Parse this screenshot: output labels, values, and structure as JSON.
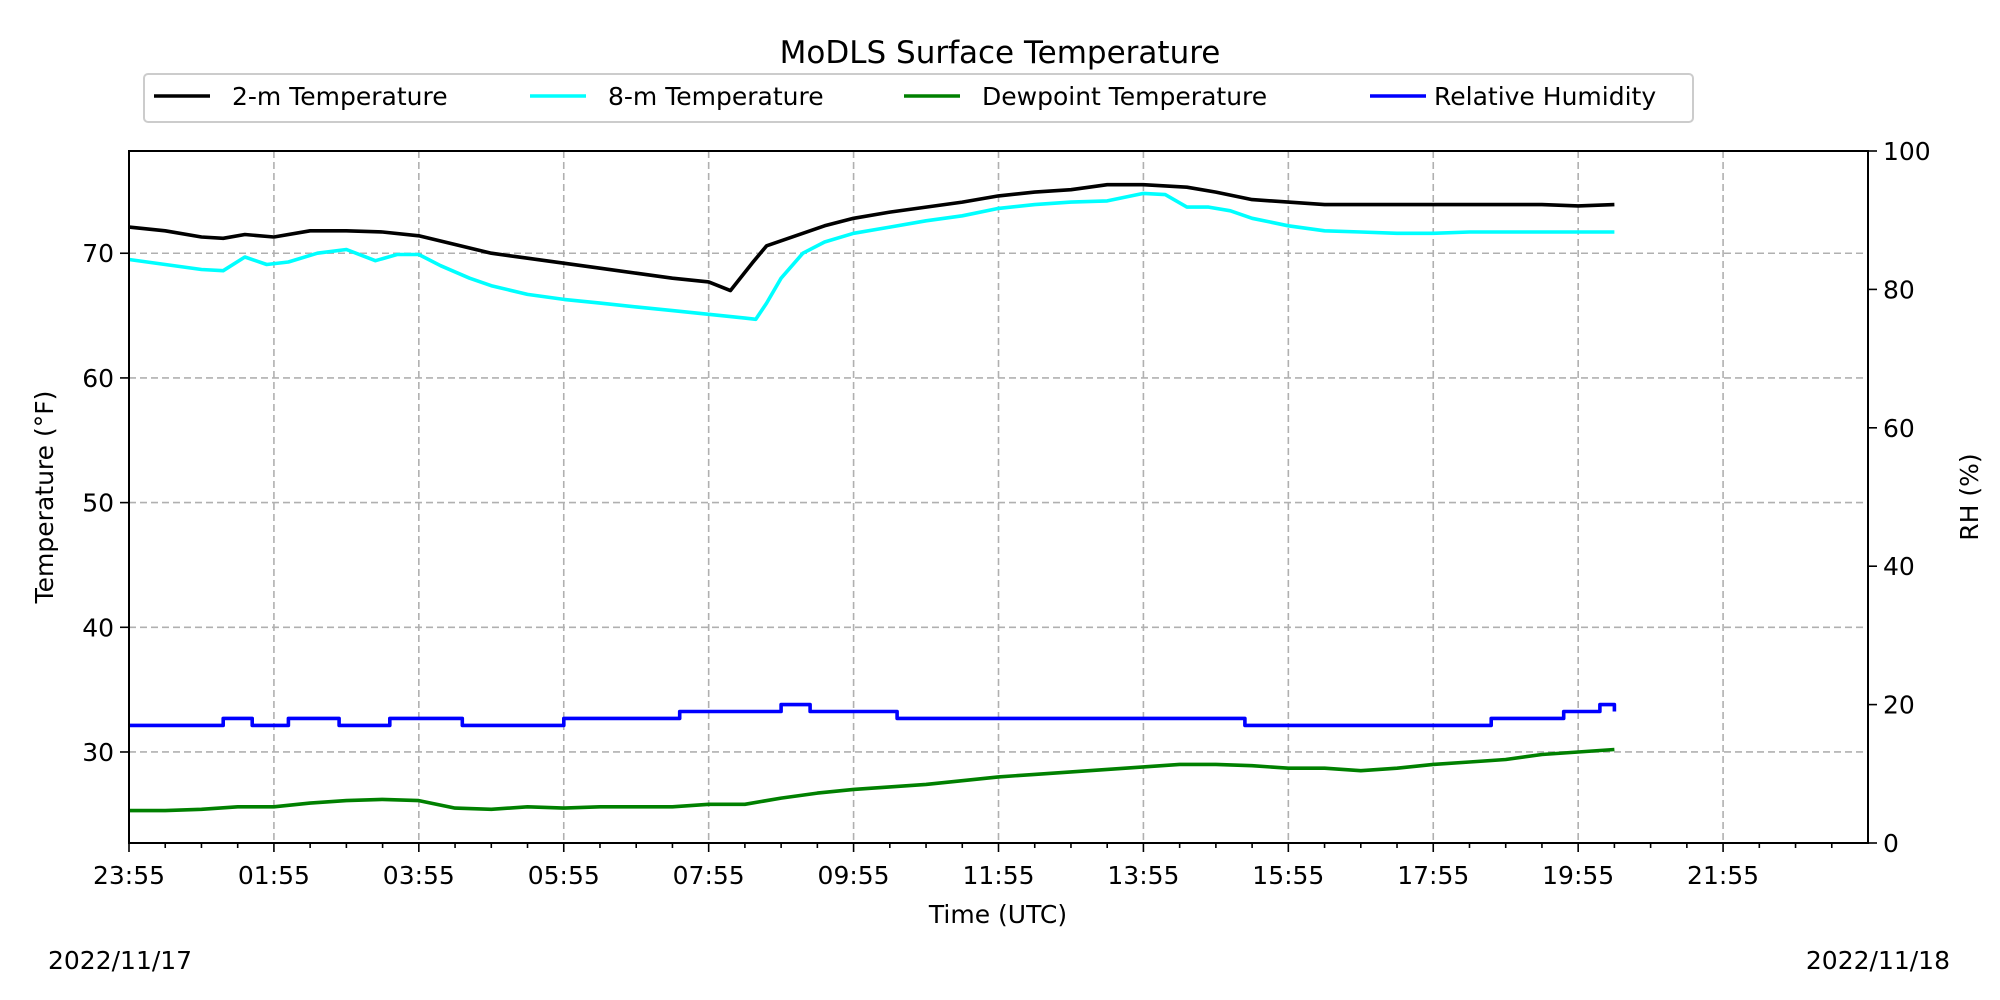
{
  "chart_data": {
    "type": "line",
    "title": "MoDLS Surface Temperature",
    "xlabel": "Time (UTC)",
    "ylabel": "Temperature ($^\\circ$F)",
    "ylabel_display": "Temperature (°F)",
    "y2label": "RH (%)",
    "ylim": [
      22.7,
      78.2
    ],
    "y2lim": [
      0,
      100
    ],
    "x_unit": "hours since 23:55 UTC 2022/11/17",
    "xlim": [
      0,
      24
    ],
    "x_ticks": [
      0,
      2,
      4,
      6,
      8,
      10,
      12,
      14,
      16,
      18,
      20,
      22
    ],
    "x_tick_labels": [
      "23:55",
      "01:55",
      "03:55",
      "05:55",
      "07:55",
      "09:55",
      "11:55",
      "13:55",
      "15:55",
      "17:55",
      "19:55",
      "21:55"
    ],
    "y_ticks": [
      30,
      40,
      50,
      60,
      70
    ],
    "y_tick_labels": [
      "30",
      "40",
      "50",
      "60",
      "70"
    ],
    "y2_ticks": [
      0,
      20,
      40,
      60,
      80,
      100
    ],
    "y2_tick_labels": [
      "0",
      "20",
      "40",
      "60",
      "80",
      "100"
    ],
    "grid": true,
    "legend_position": "top-center",
    "dates": {
      "start": "2022/11/17",
      "end": "2022/11/18"
    },
    "series": [
      {
        "name": "2-m Temperature",
        "axis": "left",
        "color": "#000000",
        "x": [
          0,
          0.5,
          1.0,
          1.3,
          1.6,
          2.0,
          2.5,
          3.0,
          3.5,
          4.0,
          4.5,
          5.0,
          5.5,
          6.0,
          6.5,
          7.0,
          7.5,
          8.0,
          8.3,
          8.6,
          8.8,
          9.2,
          9.6,
          10.0,
          10.5,
          11.0,
          11.5,
          12.0,
          12.5,
          13.0,
          13.5,
          14.0,
          14.3,
          14.6,
          15.0,
          15.5,
          16.0,
          16.5,
          17.0,
          17.5,
          18.0,
          18.5,
          19.0,
          19.5,
          20.0,
          20.5
        ],
        "y": [
          72.1,
          71.8,
          71.3,
          71.2,
          71.5,
          71.3,
          71.8,
          71.8,
          71.7,
          71.4,
          70.7,
          70.0,
          69.6,
          69.2,
          68.8,
          68.4,
          68.0,
          67.7,
          67.0,
          69.2,
          70.6,
          71.4,
          72.2,
          72.8,
          73.3,
          73.7,
          74.1,
          74.6,
          74.9,
          75.1,
          75.5,
          75.5,
          75.4,
          75.3,
          74.9,
          74.3,
          74.1,
          73.9,
          73.9,
          73.9,
          73.9,
          73.9,
          73.9,
          73.9,
          73.8,
          73.9
        ]
      },
      {
        "name": "8-m Temperature",
        "axis": "left",
        "color": "#00ffff",
        "x": [
          0,
          0.5,
          1.0,
          1.3,
          1.6,
          1.9,
          2.2,
          2.6,
          3.0,
          3.4,
          3.7,
          4.0,
          4.3,
          4.7,
          5.0,
          5.5,
          6.0,
          6.5,
          7.0,
          7.5,
          8.0,
          8.5,
          8.65,
          8.8,
          9.0,
          9.3,
          9.6,
          10.0,
          10.5,
          11.0,
          11.5,
          12.0,
          12.5,
          13.0,
          13.5,
          14.0,
          14.3,
          14.6,
          14.9,
          15.2,
          15.5,
          16.0,
          16.5,
          17.0,
          17.5,
          18.0,
          18.5,
          19.0,
          19.5,
          20.0,
          20.5
        ],
        "y": [
          69.5,
          69.1,
          68.7,
          68.6,
          69.7,
          69.1,
          69.3,
          70.0,
          70.3,
          69.4,
          69.9,
          69.9,
          69.0,
          68.0,
          67.4,
          66.7,
          66.3,
          66.0,
          65.7,
          65.4,
          65.1,
          64.8,
          64.7,
          66.0,
          68.0,
          70.0,
          70.9,
          71.6,
          72.1,
          72.6,
          73.0,
          73.6,
          73.9,
          74.1,
          74.2,
          74.8,
          74.7,
          73.7,
          73.7,
          73.4,
          72.8,
          72.2,
          71.8,
          71.7,
          71.6,
          71.6,
          71.7,
          71.7,
          71.7,
          71.7,
          71.7
        ]
      },
      {
        "name": "Dewpoint Temperature",
        "axis": "left",
        "color": "#008000",
        "x": [
          0,
          0.5,
          1.0,
          1.5,
          2.0,
          2.5,
          3.0,
          3.5,
          4.0,
          4.5,
          5.0,
          5.5,
          6.0,
          6.5,
          7.0,
          7.5,
          8.0,
          8.5,
          9.0,
          9.5,
          10.0,
          10.5,
          11.0,
          11.5,
          12.0,
          12.5,
          13.0,
          13.5,
          14.0,
          14.5,
          15.0,
          15.5,
          16.0,
          16.5,
          17.0,
          17.5,
          18.0,
          18.5,
          19.0,
          19.5,
          20.0,
          20.5
        ],
        "y": [
          25.3,
          25.3,
          25.4,
          25.6,
          25.6,
          25.9,
          26.1,
          26.2,
          26.1,
          25.5,
          25.4,
          25.6,
          25.5,
          25.6,
          25.6,
          25.6,
          25.8,
          25.8,
          26.3,
          26.7,
          27.0,
          27.2,
          27.4,
          27.7,
          28.0,
          28.2,
          28.4,
          28.6,
          28.8,
          29.0,
          29.0,
          28.9,
          28.7,
          28.7,
          28.5,
          28.7,
          29.0,
          29.2,
          29.4,
          29.8,
          30.0,
          30.2
        ]
      },
      {
        "name": "Relative Humidity",
        "axis": "right",
        "color": "#0000ff",
        "step": true,
        "x": [
          0,
          1.3,
          1.7,
          2.2,
          2.9,
          3.6,
          4.6,
          6.0,
          7.6,
          9.0,
          9.4,
          10.6,
          15.4,
          18.8,
          19.8,
          20.3,
          20.5
        ],
        "y": [
          17,
          18,
          17,
          18,
          17,
          18,
          17,
          18,
          19,
          20,
          19,
          18,
          17,
          18,
          19,
          20,
          19
        ]
      }
    ]
  }
}
